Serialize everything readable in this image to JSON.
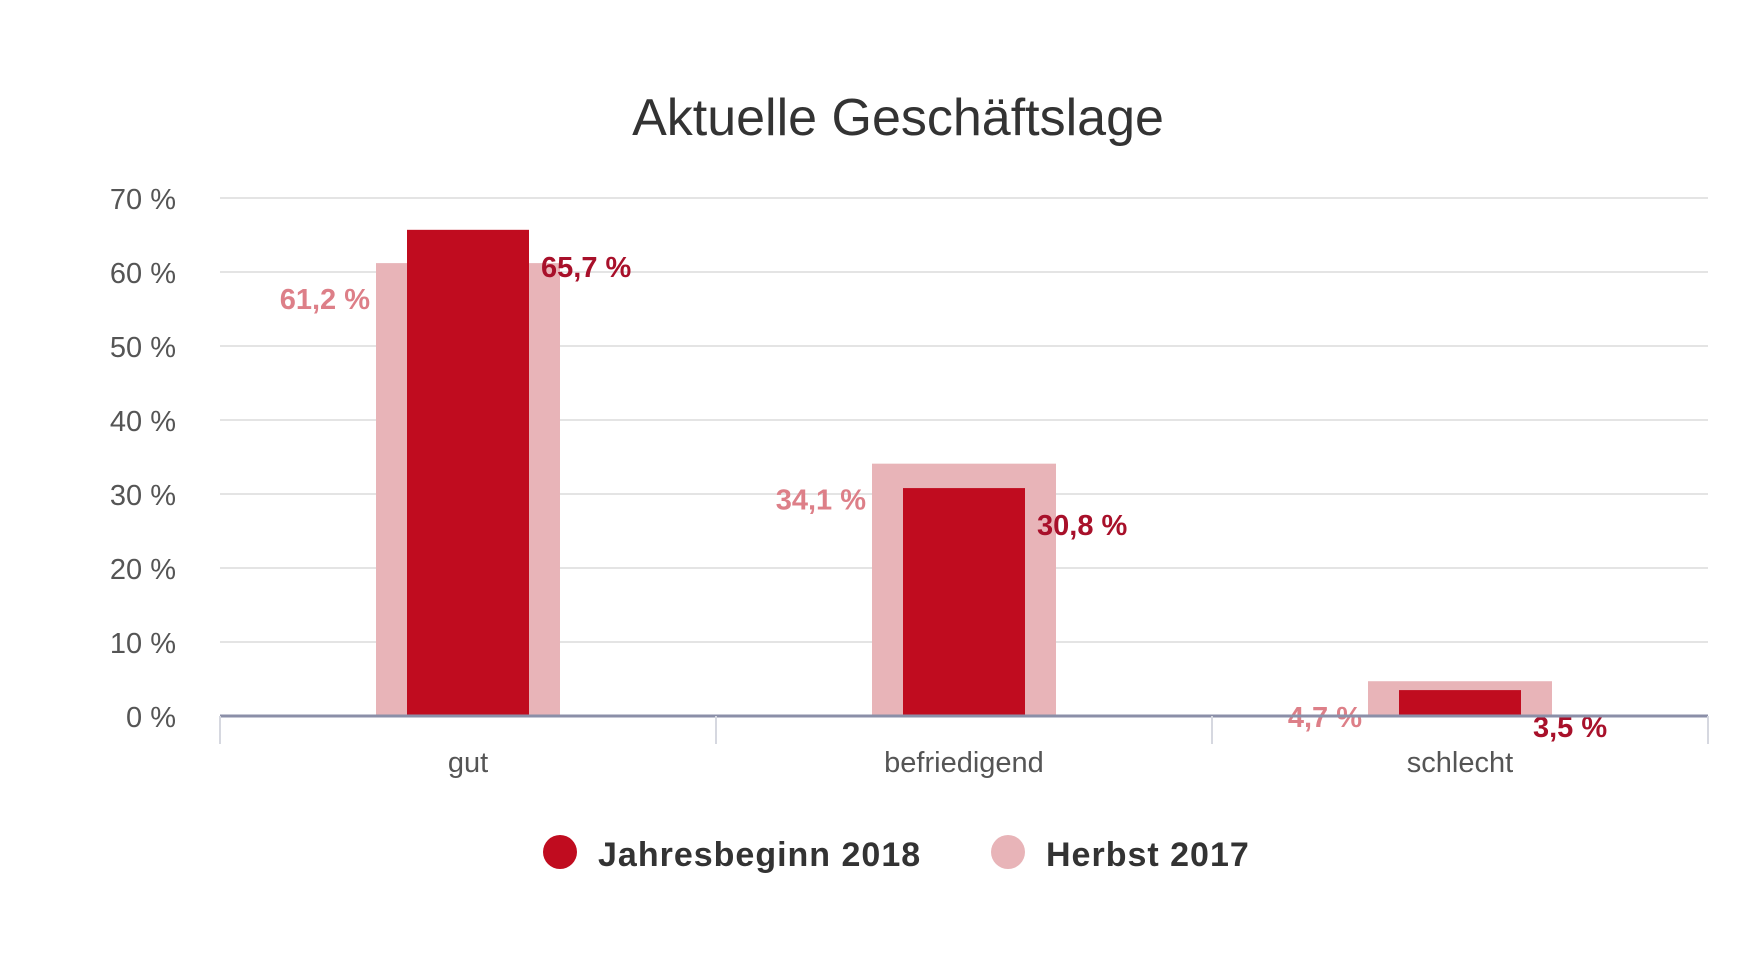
{
  "chart_data": {
    "type": "bar",
    "title": "Aktuelle Geschäftslage",
    "categories": [
      "gut",
      "befriedigend",
      "schlecht"
    ],
    "series": [
      {
        "name": "Herbst 2017",
        "values": [
          61.2,
          34.1,
          4.7
        ],
        "labels": [
          "61,2 %",
          "34,1 %",
          "4,7 %"
        ],
        "color": "#e8b4b8"
      },
      {
        "name": "Jahresbeginn 2018",
        "values": [
          65.7,
          30.8,
          3.5
        ],
        "labels": [
          "65,7 %",
          "30,8 %",
          "3,5 %"
        ],
        "color": "#c00c1f"
      }
    ],
    "y_ticks": [
      0,
      10,
      20,
      30,
      40,
      50,
      60,
      70
    ],
    "y_tick_labels": [
      "0 %",
      "10 %",
      "20 %",
      "30 %",
      "40 %",
      "50 %",
      "60 %",
      "70 %"
    ],
    "ylim": [
      0,
      70
    ],
    "grid": true,
    "legend_position": "bottom",
    "legend": [
      {
        "label": "Jahresbeginn 2018",
        "color": "#c00c1f"
      },
      {
        "label": "Herbst 2017",
        "color": "#e8b4b8"
      }
    ],
    "colors": {
      "front_series_label": "#a8102a",
      "back_series_label": "#dd7f88",
      "axis_text": "#555555",
      "grid": "#e4e4e4",
      "baseline": "#8b8fa8"
    }
  }
}
